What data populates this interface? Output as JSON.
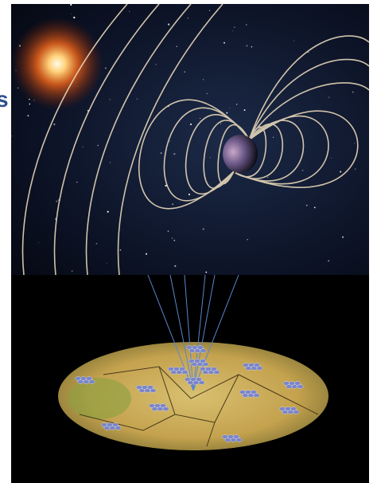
{
  "side_text": "s"
}
